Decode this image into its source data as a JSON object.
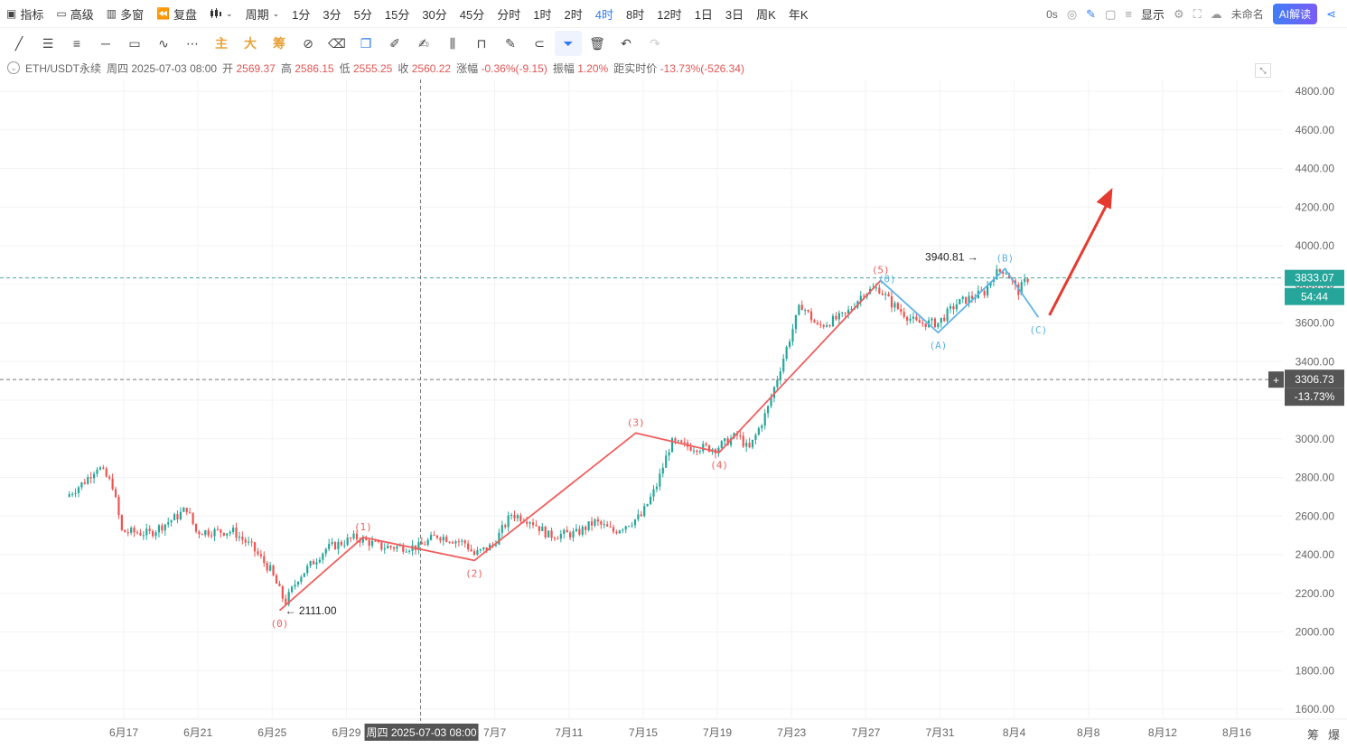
{
  "toolbar": {
    "indicators": "指标",
    "advanced": "高级",
    "multi_window": "多窗",
    "replay": "复盘",
    "chart_style_icon": "candles-icon",
    "period": "周期",
    "intervals": [
      "1分",
      "3分",
      "5分",
      "15分",
      "30分",
      "45分",
      "分时",
      "1时",
      "2时",
      "4时",
      "8时",
      "12时",
      "1日",
      "3日",
      "周K",
      "年K"
    ],
    "active_interval": "4时",
    "countdown": "0s",
    "display": "显示",
    "layout_name": "未命名",
    "ai_button": "AI解读"
  },
  "drawbar": {
    "main": "主",
    "big": "大",
    "chips": "筹"
  },
  "info": {
    "symbol": "ETH/USDT永续",
    "date_label": "周四 2025-07-03 08:00",
    "open_label": "开",
    "open": "2569.37",
    "high_label": "高",
    "high": "2586.15",
    "low_label": "低",
    "low": "2555.25",
    "close_label": "收",
    "close": "2560.22",
    "change_label": "涨幅",
    "change": "-0.36%(-9.15)",
    "amplitude_label": "振幅",
    "amplitude": "1.20%",
    "distance_label": "距实时价",
    "distance": "-13.73%(-526.34)"
  },
  "corner": {
    "chips": "筹",
    "liq": "爆"
  },
  "chart_data": {
    "type": "candlestick",
    "symbol": "ETH/USDT永续",
    "interval": "4时",
    "y_axis": {
      "min": 1500,
      "max": 4900,
      "ticks": [
        1600,
        1800,
        2000,
        2200,
        2400,
        2600,
        2800,
        3000,
        3200,
        3400,
        3600,
        3800,
        4000,
        4200,
        4400,
        4600,
        4800
      ]
    },
    "y_tick_labels": [
      "1600.00",
      "1800.00",
      "2000.00",
      "2200.00",
      "2400.00",
      "2600.00",
      "2800.00",
      "3000.00",
      "3200.00",
      "3400.00",
      "3600.00",
      "3800.00",
      "4000.00",
      "4200.00",
      "4400.00",
      "4600.00",
      "4800.00"
    ],
    "x_axis": {
      "start_date": "2025-06-14",
      "end_date": "2025-08-19",
      "tick_days": [
        3,
        7,
        11,
        15,
        19,
        23,
        27,
        31,
        35,
        39,
        43,
        47,
        51,
        55,
        59,
        63
      ],
      "tick_labels": [
        "6月17",
        "6月21",
        "6月25",
        "6月29",
        "7月3",
        "7月7",
        "7月11",
        "7月15",
        "7月19",
        "7月23",
        "7月27",
        "7月31",
        "8月4",
        "8月8",
        "8月12",
        "8月16"
      ]
    },
    "price_path": [
      {
        "day": 0,
        "price": 2700
      },
      {
        "day": 1,
        "price": 2780
      },
      {
        "day": 1.7,
        "price": 2860
      },
      {
        "day": 2.5,
        "price": 2760
      },
      {
        "day": 3.0,
        "price": 2520
      },
      {
        "day": 4.5,
        "price": 2510
      },
      {
        "day": 6.0,
        "price": 2600
      },
      {
        "day": 6.5,
        "price": 2640
      },
      {
        "day": 7.0,
        "price": 2520
      },
      {
        "day": 9.0,
        "price": 2520
      },
      {
        "day": 10.0,
        "price": 2440
      },
      {
        "day": 11.0,
        "price": 2320
      },
      {
        "day": 11.8,
        "price": 2150
      },
      {
        "day": 12.5,
        "price": 2280
      },
      {
        "day": 14.0,
        "price": 2430
      },
      {
        "day": 15.6,
        "price": 2490
      },
      {
        "day": 17.0,
        "price": 2440
      },
      {
        "day": 19.0,
        "price": 2440
      },
      {
        "day": 20.0,
        "price": 2500
      },
      {
        "day": 21.5,
        "price": 2460
      },
      {
        "day": 22.0,
        "price": 2400
      },
      {
        "day": 23.0,
        "price": 2450
      },
      {
        "day": 24.0,
        "price": 2610
      },
      {
        "day": 25.0,
        "price": 2580
      },
      {
        "day": 26.0,
        "price": 2500
      },
      {
        "day": 27.5,
        "price": 2510
      },
      {
        "day": 28.5,
        "price": 2570
      },
      {
        "day": 29.5,
        "price": 2520
      },
      {
        "day": 31.0,
        "price": 2600
      },
      {
        "day": 31.8,
        "price": 2750
      },
      {
        "day": 32.6,
        "price": 2980
      },
      {
        "day": 33.5,
        "price": 2960
      },
      {
        "day": 35.0,
        "price": 2950
      },
      {
        "day": 36.2,
        "price": 3020
      },
      {
        "day": 36.8,
        "price": 2940
      },
      {
        "day": 37.8,
        "price": 3150
      },
      {
        "day": 38.6,
        "price": 3400
      },
      {
        "day": 39.6,
        "price": 3700
      },
      {
        "day": 40.5,
        "price": 3580
      },
      {
        "day": 42.0,
        "price": 3640
      },
      {
        "day": 43.0,
        "price": 3760
      },
      {
        "day": 43.8,
        "price": 3780
      },
      {
        "day": 44.5,
        "price": 3700
      },
      {
        "day": 45.8,
        "price": 3600
      },
      {
        "day": 47.0,
        "price": 3600
      },
      {
        "day": 48.0,
        "price": 3700
      },
      {
        "day": 49.5,
        "price": 3760
      },
      {
        "day": 50.0,
        "price": 3850
      },
      {
        "day": 50.6,
        "price": 3880
      },
      {
        "day": 51.3,
        "price": 3760
      },
      {
        "day": 51.8,
        "price": 3830
      }
    ],
    "series": [
      {
        "name": "Elliott impulse",
        "color": "#ef5f5f",
        "points": [
          {
            "day": 11.4,
            "price": 2111,
            "label": "(0)"
          },
          {
            "day": 15.9,
            "price": 2490,
            "label": "(1)"
          },
          {
            "day": 21.9,
            "price": 2370,
            "label": "(2)"
          },
          {
            "day": 30.6,
            "price": 3030,
            "label": "(3)"
          },
          {
            "day": 35.1,
            "price": 2930,
            "label": "(4)"
          },
          {
            "day": 43.8,
            "price": 3820,
            "label": "(5)"
          }
        ]
      },
      {
        "name": "Elliott correction",
        "color": "#5fb4e6",
        "points": [
          {
            "day": 43.8,
            "price": 3820,
            "label": "(0)"
          },
          {
            "day": 46.9,
            "price": 3550,
            "label": "(A)"
          },
          {
            "day": 50.5,
            "price": 3880,
            "label": "(B)"
          },
          {
            "day": 52.3,
            "price": 3630,
            "label": "(C)"
          }
        ]
      }
    ],
    "annotations": [
      {
        "text": "← 2111.00",
        "day": 11.6,
        "price": 2111
      },
      {
        "text": "3940.81 →",
        "day": 46.2,
        "price": 3940.81
      },
      {
        "type": "arrow",
        "from": {
          "day": 52.9,
          "price": 3640
        },
        "to": {
          "day": 56.3,
          "price": 4300
        },
        "color": "#e53a2f"
      }
    ],
    "current_price": {
      "value": "3833.07",
      "countdown": "54:44",
      "price": 3833.07
    },
    "crosshair": {
      "value": "3306.73",
      "percent": "-13.73%",
      "price": 3306.73,
      "day": 19.0,
      "date_label": "周四 2025-07-03 08:00"
    }
  }
}
